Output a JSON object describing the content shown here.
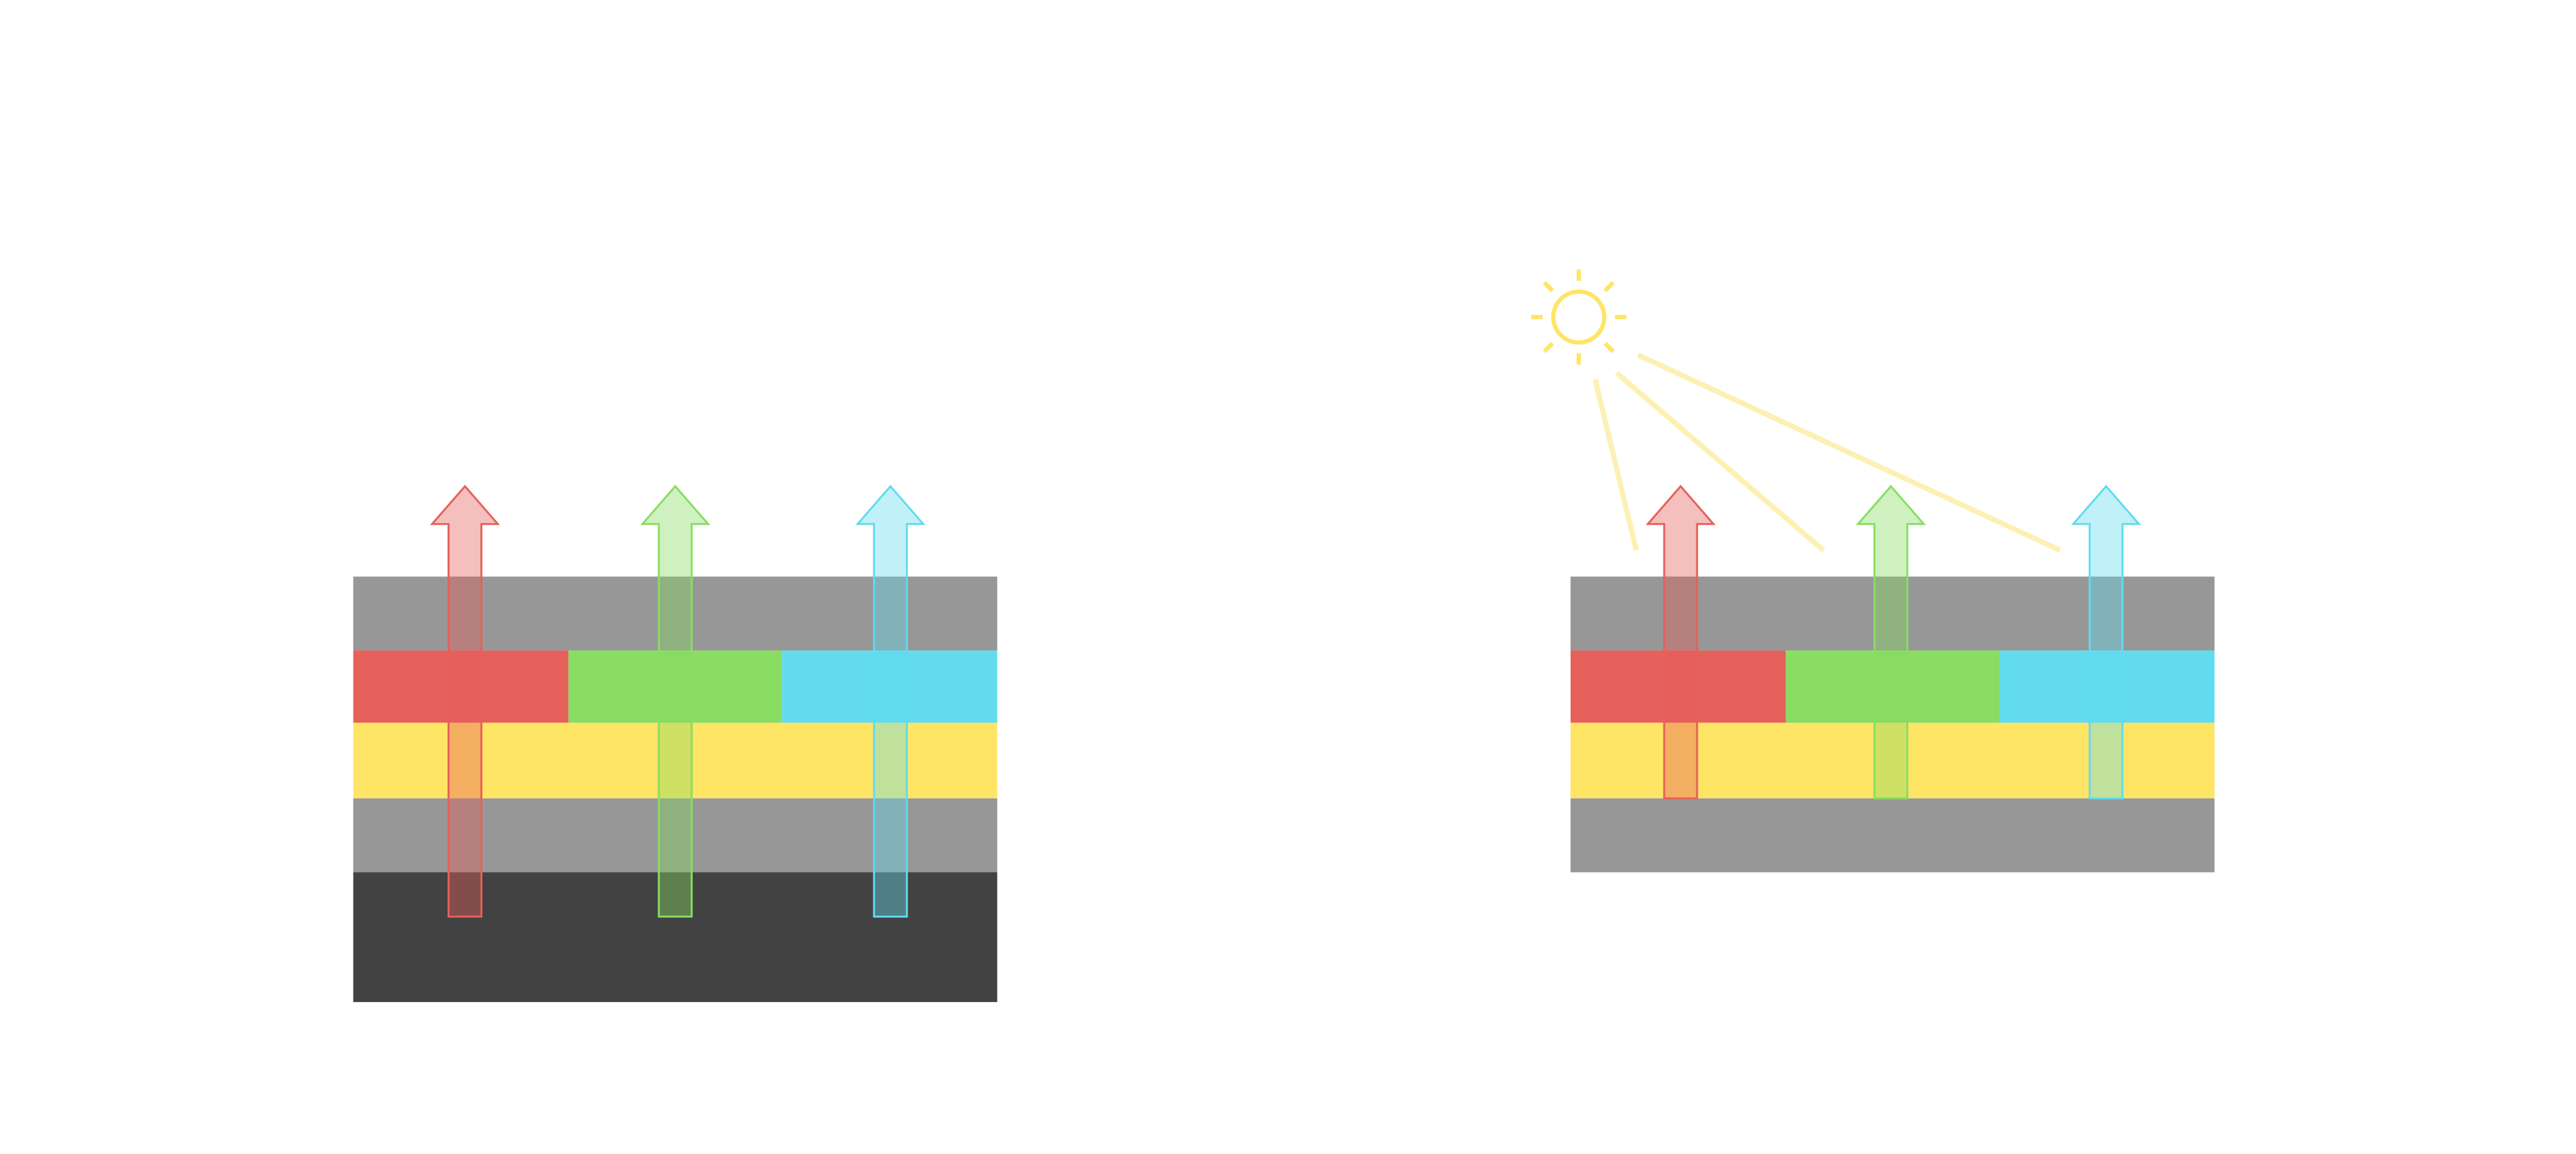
{
  "colors": {
    "background": "#ffffff",
    "gray_layer": "#979797",
    "dark_layer": "#424242",
    "yellow_layer": "#ffe566",
    "red": "#e6605c",
    "green": "#88dd62",
    "cyan": "#62dbee",
    "sun": "#ffe566",
    "sun_rays": "#fdf0b4"
  },
  "left_stack": {
    "layers": [
      "gray",
      "rgb-color-filter",
      "yellow",
      "gray",
      "dark"
    ],
    "arrows": [
      "red",
      "green",
      "cyan"
    ]
  },
  "right_stack": {
    "layers": [
      "gray",
      "rgb-color-filter",
      "yellow",
      "gray"
    ],
    "arrows": [
      "red",
      "green",
      "cyan"
    ],
    "light_source": "sun-icon"
  }
}
